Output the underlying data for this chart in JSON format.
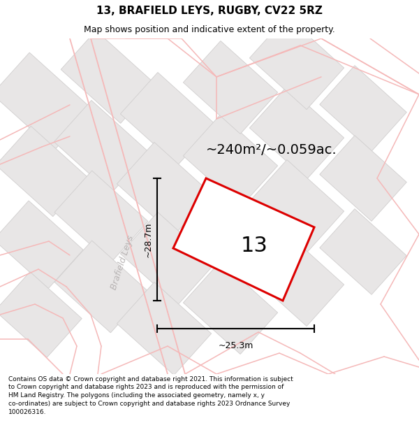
{
  "title": "13, BRAFIELD LEYS, RUGBY, CV22 5RZ",
  "subtitle": "Map shows position and indicative extent of the property.",
  "area_text": "~240m²/~0.059ac.",
  "label": "13",
  "dim_width": "~25.3m",
  "dim_height": "~28.7m",
  "road_label": "Brafield Leys",
  "footer": "Contains OS data © Crown copyright and database right 2021. This information is subject to Crown copyright and database rights 2023 and is reproduced with the permission of HM Land Registry. The polygons (including the associated geometry, namely x, y co-ordinates) are subject to Crown copyright and database rights 2023 Ordnance Survey 100026316.",
  "bg_color": "#ffffff",
  "map_bg": "#ffffff",
  "plot_fill": "#ffffff",
  "plot_edge": "#dd0000",
  "road_color": "#f5b8b8",
  "block_fill": "#e8e6e6",
  "block_edge": "#d0cece",
  "title_fontsize": 11,
  "subtitle_fontsize": 9,
  "area_fontsize": 14,
  "label_fontsize": 22,
  "dim_fontsize": 9,
  "road_label_fontsize": 9
}
